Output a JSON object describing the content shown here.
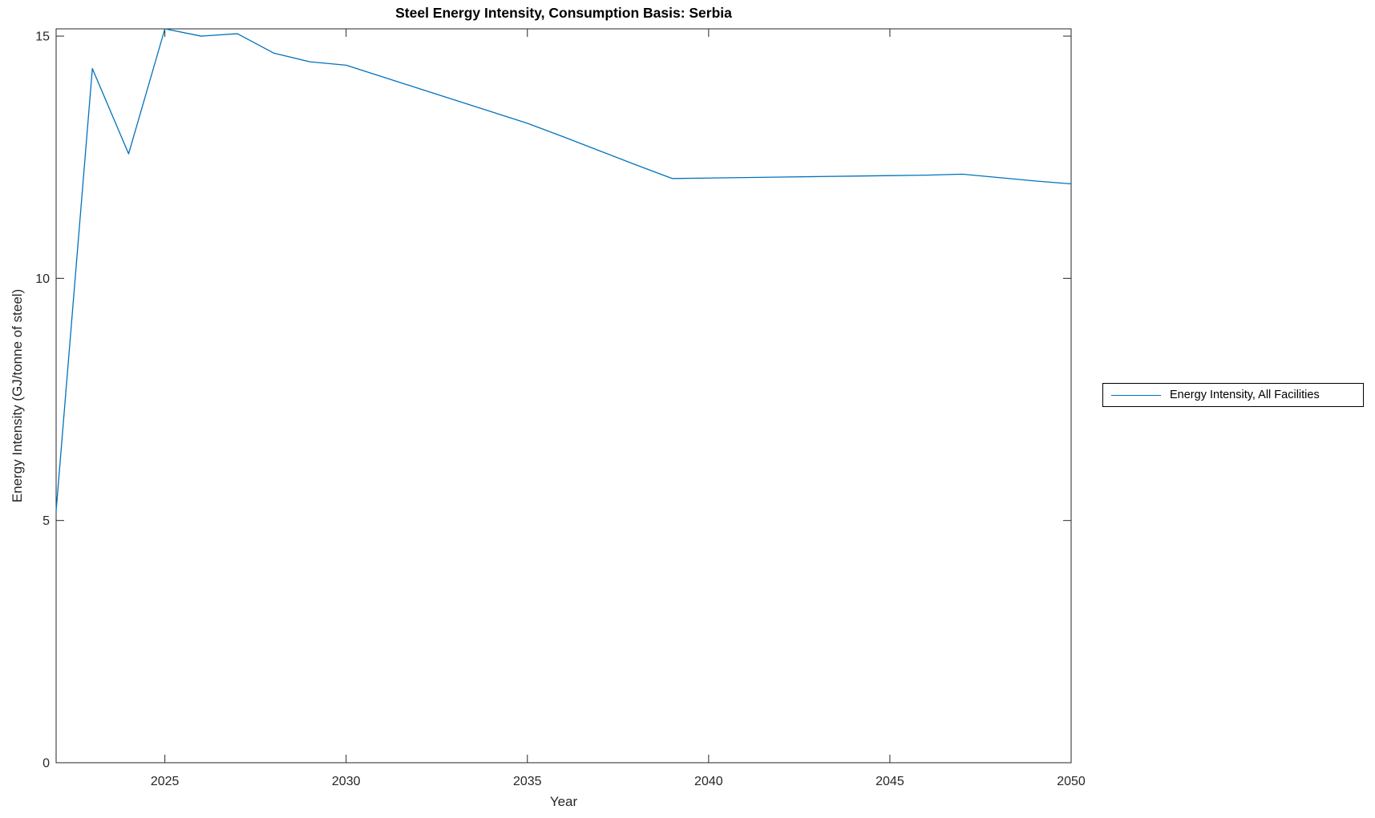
{
  "chart_data": {
    "type": "line",
    "title": "Steel Energy Intensity, Consumption Basis: Serbia",
    "xlabel": "Year",
    "ylabel": "Energy Intensity (GJ/tonne of steel)",
    "xlim": [
      2022,
      2050
    ],
    "ylim": [
      0,
      15.15
    ],
    "xticks": [
      2025,
      2030,
      2035,
      2040,
      2045,
      2050
    ],
    "yticks": [
      0,
      5,
      10,
      15
    ],
    "grid": false,
    "legend": {
      "position": "right-outside",
      "entries": [
        "Energy Intensity, All Facilities"
      ]
    },
    "colors": {
      "line": "#0072BD",
      "axis": "#262626",
      "legend_border": "#000000"
    },
    "series": [
      {
        "name": "Energy Intensity, All Facilities",
        "x": [
          2022,
          2023,
          2024,
          2025,
          2026,
          2027,
          2028,
          2029,
          2030,
          2031,
          2032,
          2033,
          2034,
          2035,
          2036,
          2037,
          2038,
          2039,
          2040,
          2041,
          2042,
          2043,
          2044,
          2045,
          2046,
          2047,
          2048,
          2049,
          2050
        ],
        "y": [
          5.2,
          14.33,
          12.57,
          15.15,
          15.0,
          15.05,
          14.65,
          14.47,
          14.4,
          14.16,
          13.92,
          13.68,
          13.44,
          13.2,
          12.92,
          12.63,
          12.34,
          12.06,
          12.07,
          12.08,
          12.09,
          12.1,
          12.11,
          12.12,
          12.13,
          12.15,
          12.08,
          12.01,
          11.95
        ]
      }
    ]
  }
}
